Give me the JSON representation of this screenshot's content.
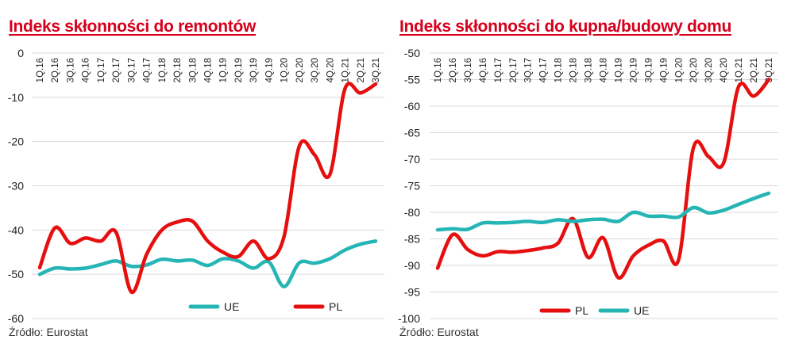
{
  "source_label": "Źródło: Eurostat",
  "colors": {
    "UE": "#26b5b5",
    "PL": "#e60f0f"
  },
  "chart_data": [
    {
      "type": "line",
      "title": "Indeks skłonności do remontów",
      "xlabel": "",
      "ylabel": "",
      "ylim": [
        -60,
        0
      ],
      "yticks": [
        0,
        -10,
        -20,
        -30,
        -40,
        -50,
        -60
      ],
      "grid": true,
      "categories": [
        "1Q.16",
        "2Q.16",
        "3Q.16",
        "4Q.16",
        "1Q.17",
        "2Q.17",
        "3Q.17",
        "4Q.17",
        "1Q.18",
        "2Q.18",
        "3Q.18",
        "4Q.18",
        "1Q.19",
        "2Q.19",
        "3Q.19",
        "4Q.19",
        "1Q.20",
        "2Q.20",
        "3Q.20",
        "4Q.20",
        "1Q.21",
        "2Q.21",
        "3Q.21"
      ],
      "legend_position": "bottom",
      "legend_order": [
        "UE",
        "PL"
      ],
      "series": [
        {
          "name": "UE",
          "values": [
            -50,
            -48.6,
            -48.8,
            -48.6,
            -47.8,
            -47,
            -48.2,
            -47.9,
            -46.6,
            -47,
            -46.8,
            -48,
            -46.5,
            -47,
            -48.6,
            -47.2,
            -52.8,
            -47.4,
            -47.5,
            -46.5,
            -44.5,
            -43.2,
            -42.5
          ]
        },
        {
          "name": "PL",
          "values": [
            -48.5,
            -39.5,
            -43,
            -41.8,
            -42.5,
            -40.5,
            -54,
            -45.5,
            -40,
            -38.2,
            -38,
            -42.5,
            -45,
            -46,
            -42.5,
            -46.5,
            -41.5,
            -21,
            -23,
            -27.5,
            -8,
            -9,
            -7
          ]
        }
      ]
    },
    {
      "type": "line",
      "title": "Indeks skłonności do kupna/budowy domu",
      "xlabel": "",
      "ylabel": "",
      "ylim": [
        -100,
        -50
      ],
      "yticks": [
        -50,
        -55,
        -60,
        -65,
        -70,
        -75,
        -80,
        -85,
        -90,
        -95,
        -100
      ],
      "grid": true,
      "categories": [
        "1Q.16",
        "2Q.16",
        "3Q.16",
        "4Q.16",
        "1Q.17",
        "2Q.17",
        "3Q.17",
        "4Q.17",
        "1Q.18",
        "2Q.18",
        "3Q.18",
        "4Q.18",
        "1Q.19",
        "2Q.19",
        "3Q.19",
        "4Q.19",
        "1Q.20",
        "2Q.20",
        "3Q.20",
        "4Q.20",
        "1Q.21",
        "2Q.21",
        "3Q.21"
      ],
      "legend_position": "bottom",
      "legend_order": [
        "PL",
        "UE"
      ],
      "series": [
        {
          "name": "PL",
          "values": [
            -90.5,
            -84.2,
            -87,
            -88.2,
            -87.4,
            -87.5,
            -87.2,
            -86.7,
            -85.8,
            -81.2,
            -88.5,
            -84.8,
            -92.3,
            -88.2,
            -86.2,
            -85.4,
            -89,
            -67.8,
            -69.5,
            -70.7,
            -56.3,
            -58.1,
            -55
          ]
        },
        {
          "name": "UE",
          "values": [
            -83.3,
            -83.1,
            -83.2,
            -82,
            -82,
            -81.9,
            -81.7,
            -81.9,
            -81.4,
            -81.7,
            -81.4,
            -81.3,
            -81.7,
            -80,
            -80.7,
            -80.7,
            -80.9,
            -79.1,
            -80.1,
            -79.6,
            -78.5,
            -77.4,
            -76.4
          ]
        }
      ]
    }
  ]
}
